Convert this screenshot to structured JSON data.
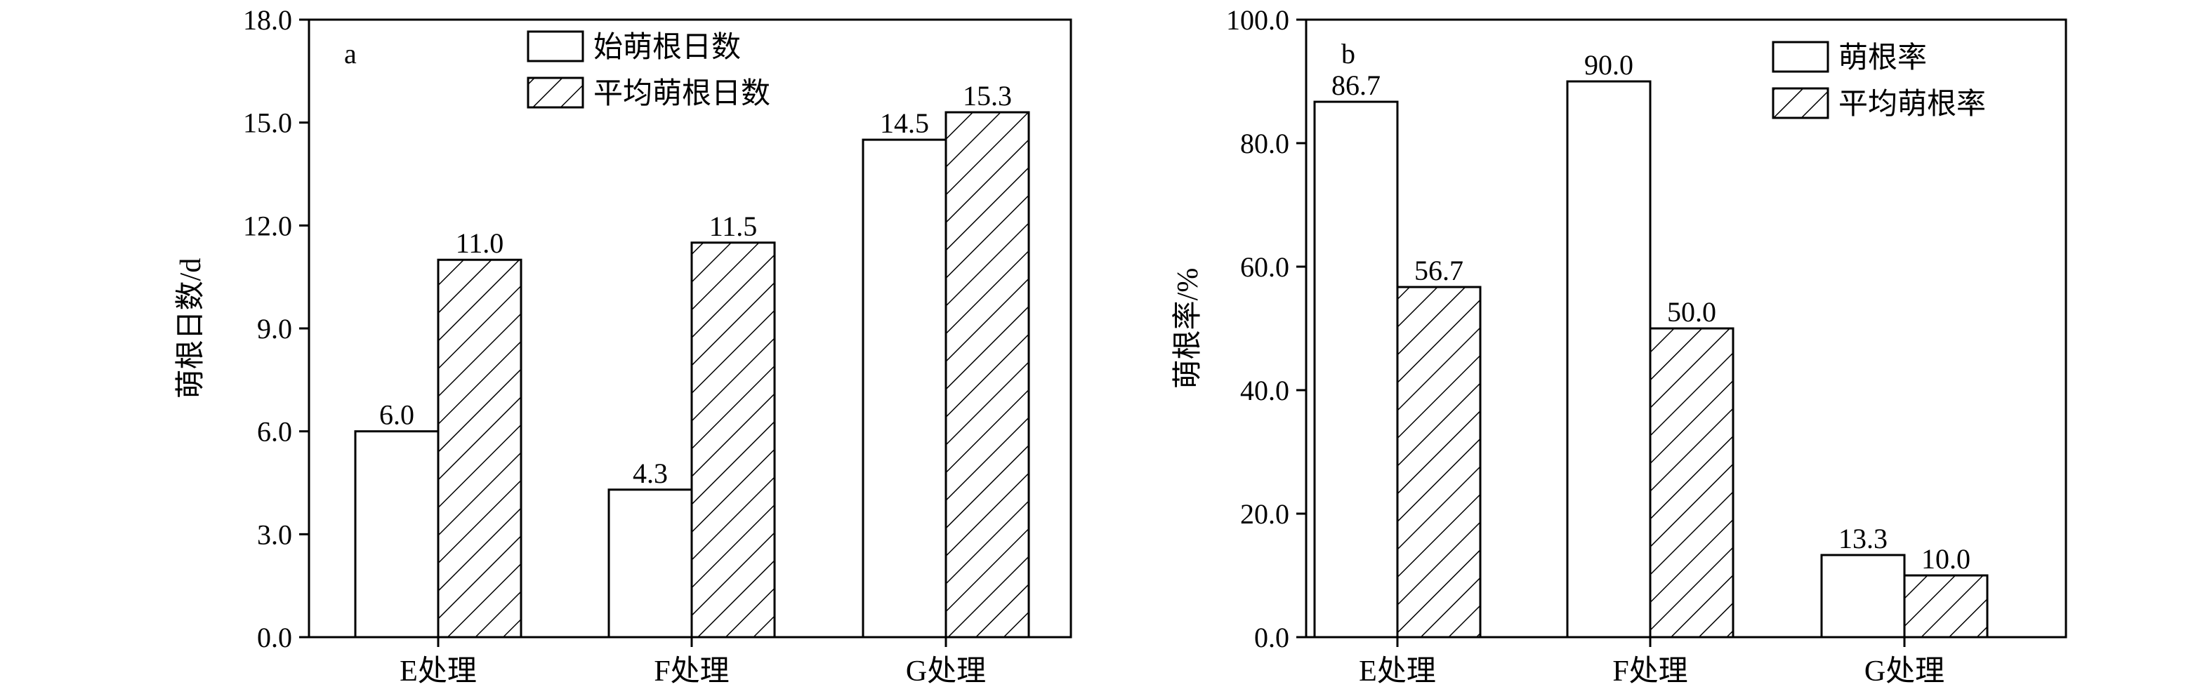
{
  "chart_data": [
    {
      "type": "bar",
      "panel_label": "a",
      "ylabel": "萌根日数/d",
      "xlabel": "",
      "ylim": [
        0,
        18
      ],
      "yticks": [
        "0.0",
        "3.0",
        "6.0",
        "9.0",
        "12.0",
        "15.0",
        "18.0"
      ],
      "categories": [
        "E处理",
        "F处理",
        "G处理"
      ],
      "legend_position": "top-center",
      "series": [
        {
          "name": "始萌根日数",
          "pattern": "open",
          "values": [
            6.0,
            4.3,
            14.5
          ],
          "labels": [
            "6.0",
            "4.3",
            "14.5"
          ]
        },
        {
          "name": "平均萌根日数",
          "pattern": "hatch",
          "values": [
            11.0,
            11.5,
            15.3
          ],
          "labels": [
            "11.0",
            "11.5",
            "15.3"
          ]
        }
      ]
    },
    {
      "type": "bar",
      "panel_label": "b",
      "ylabel": "萌根率/%",
      "xlabel": "",
      "ylim": [
        0,
        100
      ],
      "yticks": [
        "0.0",
        "20.0",
        "40.0",
        "60.0",
        "80.0",
        "100.0"
      ],
      "categories": [
        "E处理",
        "F处理",
        "G处理"
      ],
      "legend_position": "top-right",
      "series": [
        {
          "name": "萌根率",
          "pattern": "open",
          "values": [
            86.7,
            90.0,
            13.3
          ],
          "labels": [
            "86.7",
            "90.0",
            "13.3"
          ]
        },
        {
          "name": "平均萌根率",
          "pattern": "hatch",
          "values": [
            56.7,
            50.0,
            10.0
          ],
          "labels": [
            "56.7",
            "50.0",
            "10.0"
          ]
        }
      ]
    }
  ],
  "colors": {
    "axis": "#000000",
    "bar_fill": "#ffffff",
    "hatch": "#000000"
  }
}
